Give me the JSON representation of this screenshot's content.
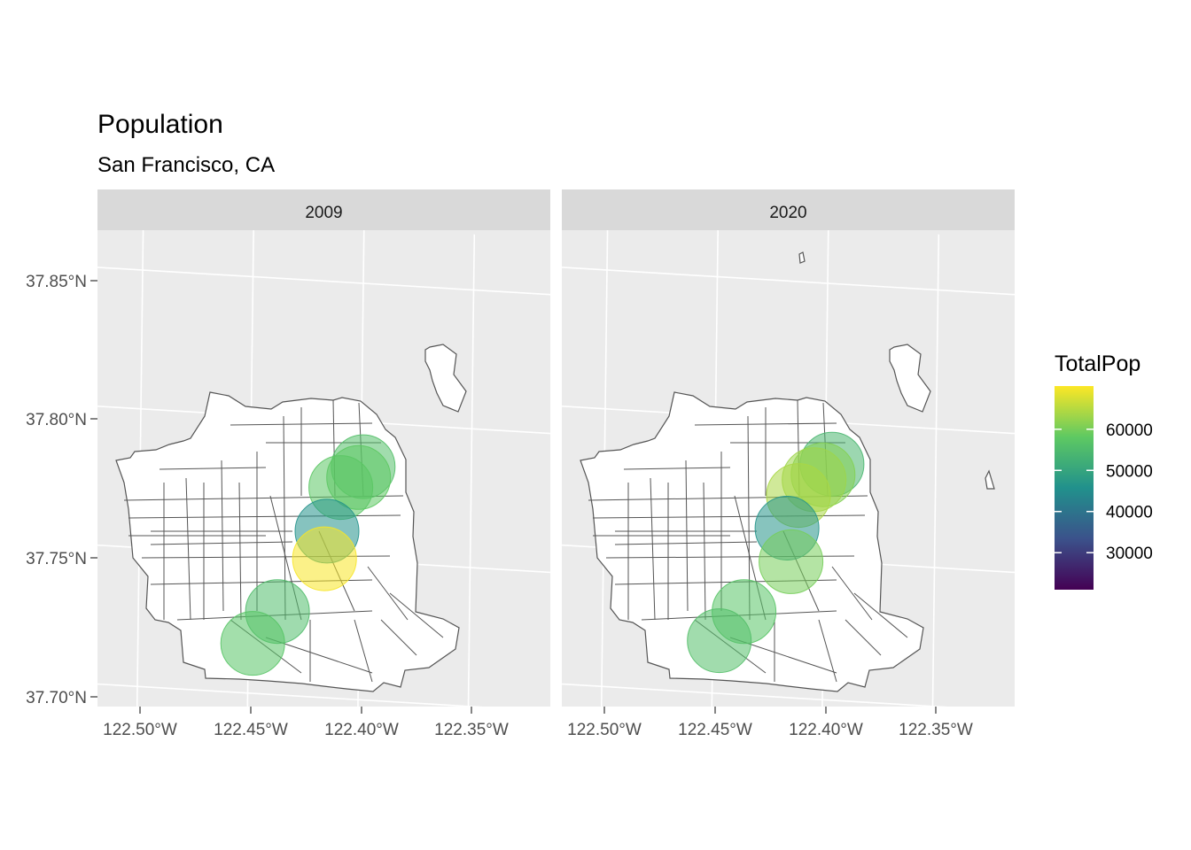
{
  "title": "Population",
  "subtitle": "San Francisco, CA",
  "legend": {
    "title": "TotalPop",
    "palette": [
      "#440154",
      "#3b528b",
      "#21918c",
      "#5ec962",
      "#fde725"
    ],
    "breaks": [
      {
        "value": 30000,
        "label": "30000"
      },
      {
        "value": 40000,
        "label": "40000"
      },
      {
        "value": 50000,
        "label": "50000"
      },
      {
        "value": 60000,
        "label": "60000"
      }
    ],
    "range": [
      21000,
      70500
    ]
  },
  "axes": {
    "y_ticks": [
      {
        "value": 37.85,
        "label": "37.85°N"
      },
      {
        "value": 37.8,
        "label": "37.80°N"
      },
      {
        "value": 37.75,
        "label": "37.75°N"
      },
      {
        "value": 37.7,
        "label": "37.70°N"
      }
    ],
    "x_ticks": [
      {
        "value": -122.5,
        "label": "122.50°W"
      },
      {
        "value": -122.45,
        "label": "122.45°W"
      },
      {
        "value": -122.4,
        "label": "122.40°W"
      },
      {
        "value": -122.35,
        "label": "122.35°W"
      }
    ]
  },
  "colors": {
    "panel": "#ebebeb",
    "strip": "#d9d9d9",
    "grid": "#ffffff",
    "outline": "#555555"
  },
  "chart_data": {
    "type": "map-bubble",
    "panels": [
      {
        "label": "2009",
        "points": [
          {
            "lon": -122.399,
            "lat": 37.784,
            "pop": 56000
          },
          {
            "lon": -122.401,
            "lat": 37.78,
            "pop": 58000
          },
          {
            "lon": -122.409,
            "lat": 37.776,
            "pop": 57500
          },
          {
            "lon": -122.415,
            "lat": 37.76,
            "pop": 46000
          },
          {
            "lon": -122.416,
            "lat": 37.75,
            "pop": 70000
          },
          {
            "lon": -122.437,
            "lat": 37.73,
            "pop": 55500
          },
          {
            "lon": -122.448,
            "lat": 37.718,
            "pop": 57000
          }
        ]
      },
      {
        "label": "2020",
        "points": [
          {
            "lon": -122.397,
            "lat": 37.785,
            "pop": 54000
          },
          {
            "lon": -122.401,
            "lat": 37.781,
            "pop": 61000
          },
          {
            "lon": -122.405,
            "lat": 37.779,
            "pop": 63000
          },
          {
            "lon": -122.412,
            "lat": 37.773,
            "pop": 64000
          },
          {
            "lon": -122.417,
            "lat": 37.761,
            "pop": 46500
          },
          {
            "lon": -122.415,
            "lat": 37.749,
            "pop": 60000
          },
          {
            "lon": -122.436,
            "lat": 37.73,
            "pop": 57000
          },
          {
            "lon": -122.447,
            "lat": 37.719,
            "pop": 56000
          }
        ]
      }
    ]
  }
}
